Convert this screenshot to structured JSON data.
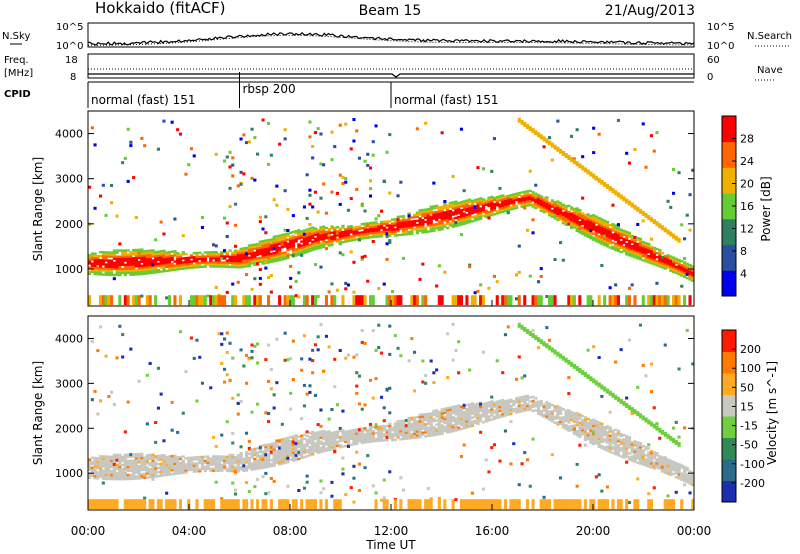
{
  "header": {
    "radar": "Hokkaido (fitACF)",
    "beam": "Beam 15",
    "date": "21/Aug/2013"
  },
  "colors": {
    "axis": "#000000",
    "background": "#ffffff"
  },
  "panels": {
    "nsky": {
      "left_label": "N.Sky",
      "right_label": "N.Search",
      "left_ticks": [
        "10^5",
        "10^0"
      ],
      "right_ticks": [
        "10^5",
        "10^0"
      ]
    },
    "freq": {
      "left_label_1": "Freq.",
      "left_label_2": "[MHz]",
      "right_label": "Nave",
      "left_ticks": [
        "18",
        "8"
      ],
      "right_ticks": [
        "60",
        "0"
      ]
    },
    "cpid": {
      "label": "CPID",
      "segments": [
        {
          "label": "normal (fast) 151",
          "start": 0,
          "end": 6
        },
        {
          "label": "rbsp 200",
          "start": 6,
          "end": 12
        },
        {
          "label": "normal (fast) 151",
          "start": 12,
          "end": 24
        }
      ]
    }
  },
  "chart_data": [
    {
      "type": "heatmap",
      "name": "power",
      "ylabel": "Slant Range [km]",
      "xlim": [
        0,
        24
      ],
      "ylim": [
        180,
        4500
      ],
      "yticks": [
        1000,
        2000,
        3000,
        4000
      ],
      "colorbar": {
        "label": "Power [dB]",
        "ticks": [
          "28",
          "24",
          "20",
          "16",
          "12",
          "8",
          "4"
        ],
        "scale_colors": [
          "#0000ee",
          "#2b4fa0",
          "#2f7f60",
          "#66cc33",
          "#f0b000",
          "#ff6600",
          "#ff0000"
        ]
      },
      "features": [
        {
          "feature": "main echo band",
          "x_start": 0,
          "x_end": 24,
          "range_start_km": 1050,
          "range_end_km": 900,
          "peak_hour": 17.5,
          "peak_range_km": 2600
        }
      ]
    },
    {
      "type": "heatmap",
      "name": "velocity",
      "ylabel": "Slant Range [km]",
      "xlabel": "Time UT",
      "xlim": [
        0,
        24
      ],
      "ylim": [
        180,
        4500
      ],
      "yticks": [
        1000,
        2000,
        3000,
        4000
      ],
      "xticks": [
        "00:00",
        "04:00",
        "08:00",
        "12:00",
        "16:00",
        "20:00",
        "00:00"
      ],
      "colorbar": {
        "label": "Velocity [m s^-1]",
        "ticks": [
          "200",
          "100",
          "50",
          "15",
          "-15",
          "-50",
          "-100",
          "-200"
        ],
        "scale_colors": [
          "#1a2fb0",
          "#2a6a8a",
          "#2f8a55",
          "#6fcf3f",
          "#c8c8c0",
          "#ffaa22",
          "#ff7a00",
          "#ff1a00"
        ]
      }
    }
  ]
}
